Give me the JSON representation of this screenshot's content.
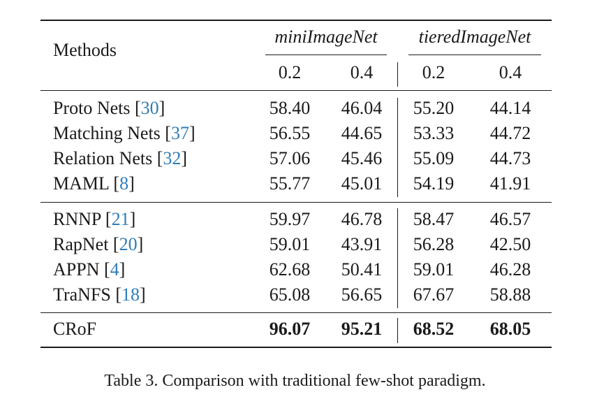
{
  "header": {
    "methods": "Methods",
    "dataset1": "miniImageNet",
    "dataset2": "tieredImageNet",
    "subcols": [
      "0.2",
      "0.4",
      "0.2",
      "0.4"
    ]
  },
  "groups": [
    {
      "rows": [
        {
          "name": "Proto Nets [",
          "ref": "30",
          "close": "]",
          "values": [
            "58.40",
            "46.04",
            "55.20",
            "44.14"
          ]
        },
        {
          "name": "Matching Nets [",
          "ref": "37",
          "close": "]",
          "values": [
            "56.55",
            "44.65",
            "53.33",
            "44.72"
          ]
        },
        {
          "name": "Relation Nets [",
          "ref": "32",
          "close": "]",
          "values": [
            "57.06",
            "45.46",
            "55.09",
            "44.73"
          ]
        },
        {
          "name": "MAML [",
          "ref": "8",
          "close": "]",
          "values": [
            "55.77",
            "45.01",
            "54.19",
            "41.91"
          ]
        }
      ]
    },
    {
      "rows": [
        {
          "name": "RNNP [",
          "ref": "21",
          "close": "]",
          "values": [
            "59.97",
            "46.78",
            "58.47",
            "46.57"
          ]
        },
        {
          "name": "RapNet [",
          "ref": "20",
          "close": "]",
          "values": [
            "59.01",
            "43.91",
            "56.28",
            "42.50"
          ]
        },
        {
          "name": "APPN [",
          "ref": "4",
          "close": "]",
          "values": [
            "62.68",
            "50.41",
            "59.01",
            "46.28"
          ]
        },
        {
          "name": "TraNFS [",
          "ref": "18",
          "close": "]",
          "values": [
            "65.08",
            "56.65",
            "67.67",
            "58.88"
          ]
        }
      ]
    },
    {
      "rows": [
        {
          "name": "CRoF",
          "ref": "",
          "close": "",
          "values": [
            "96.07",
            "95.21",
            "68.52",
            "68.05"
          ]
        }
      ]
    }
  ],
  "caption": "Table 3. Comparison with traditional few-shot paradigm."
}
